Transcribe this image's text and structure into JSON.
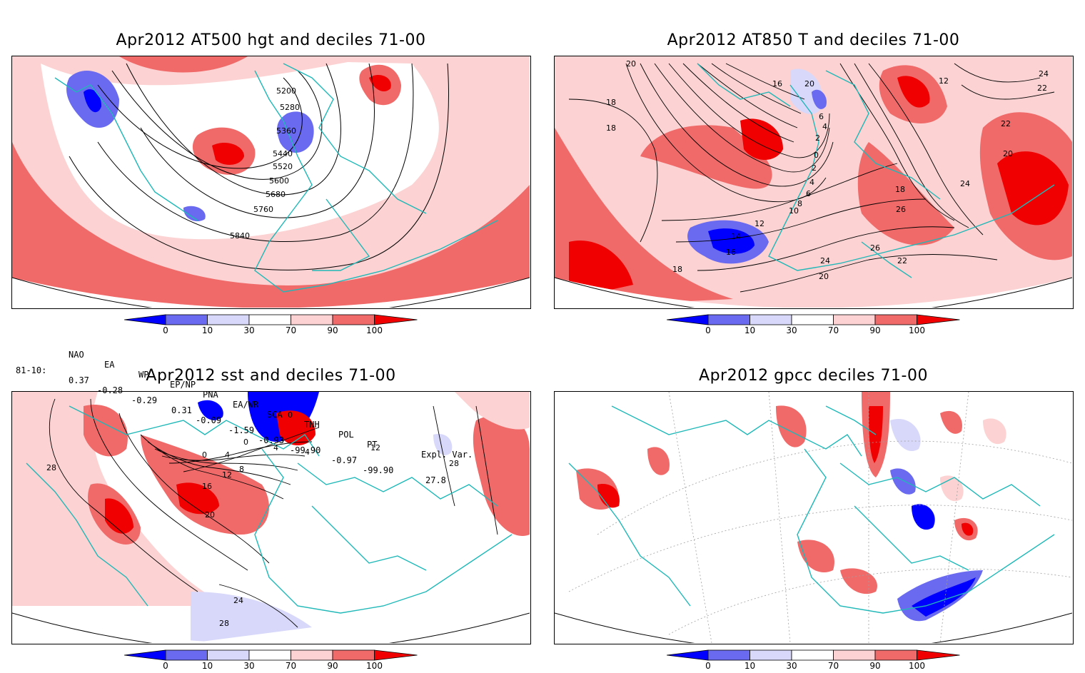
{
  "panels": [
    {
      "id": "p1",
      "title": "Apr2012 AT500 hgt and deciles 71-00",
      "contour_labels": [
        "5200",
        "5280",
        "5360",
        "5440",
        "5520",
        "5600",
        "5680",
        "5760",
        "5840"
      ]
    },
    {
      "id": "p2",
      "title": "Apr2012 AT850 T and deciles 71-00",
      "contour_labels": [
        "20",
        "18",
        "18",
        "16",
        "20",
        "6",
        "4",
        "2",
        "0",
        "2",
        "4",
        "6",
        "8",
        "10",
        "12",
        "14",
        "16",
        "18",
        "12",
        "24",
        "22",
        "22",
        "20",
        "24",
        "18",
        "26",
        "26",
        "22",
        "24",
        "20"
      ]
    },
    {
      "id": "p3",
      "title": "Apr2012 sst and deciles 71-00",
      "contour_labels": [
        "28",
        "0",
        "4",
        "0",
        "4",
        "4",
        "8",
        "12",
        "16",
        "20",
        "0",
        "24",
        "28",
        "28",
        "12"
      ]
    },
    {
      "id": "p4",
      "title": "Apr2012 gpcc deciles 71-00",
      "contour_labels": []
    }
  ],
  "colorbar": {
    "ticks": [
      "0",
      "10",
      "30",
      "70",
      "90",
      "100"
    ],
    "colors": {
      "dark_blue": "#0000ff",
      "mid_blue": "#6a6af0",
      "light_blue": "#d8d8fa",
      "white": "#ffffff",
      "light_red": "#fcd2d2",
      "mid_red": "#f06a6a",
      "dark_red": "#f00000"
    }
  },
  "indices": {
    "headers": [
      "NAO",
      "EA",
      "WP",
      "EP/NP",
      "PNA",
      "EA/WR",
      "SCA",
      "TNH",
      "POL",
      "PT",
      "Expl. Var."
    ],
    "row_label": "81-10:",
    "values": [
      "0.37",
      "-0.28",
      "-0.29",
      "0.31",
      "-0.09",
      "-1.59",
      "-0.93",
      "-99.90",
      "-0.97",
      "-99.90",
      "27.8"
    ]
  },
  "colors": {
    "coast": "#20b8b8",
    "contour": "#000000",
    "grid": "#a0a0a0"
  }
}
